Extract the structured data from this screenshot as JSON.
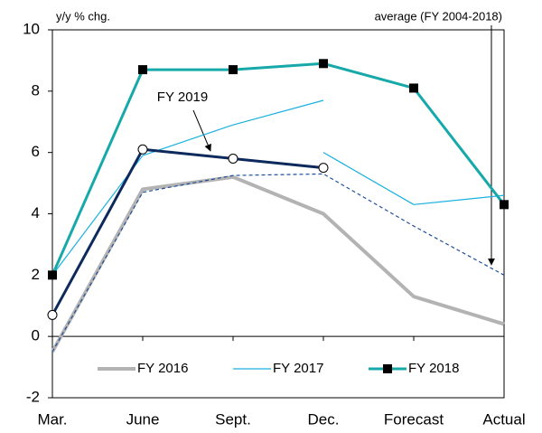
{
  "chart_data": {
    "type": "line",
    "ylabel": "y/y % chg.",
    "categories": [
      "Mar.",
      "June",
      "Sept.",
      "Dec.",
      "Forecast",
      "Actual"
    ],
    "ylim": [
      -2,
      10
    ],
    "yticks": [
      -2,
      0,
      2,
      4,
      6,
      8,
      10
    ],
    "series": [
      {
        "name": "FY 2016",
        "color": "#b3b3b3",
        "line_width": 4,
        "legend": true,
        "values": [
          -0.5,
          4.8,
          5.2,
          4.0,
          1.3,
          0.4
        ]
      },
      {
        "name": "FY 2017",
        "color": "#1ab0e0",
        "line_width": 1.2,
        "legend": true,
        "values": [
          2.0,
          5.9,
          6.9,
          7.7,
          null,
          null
        ]
      },
      {
        "color": "#1ab0e0",
        "line_width": 1.2,
        "legend": false,
        "values": [
          null,
          null,
          null,
          6.0,
          4.3,
          4.6
        ]
      },
      {
        "name": "average (FY 2004-2018)",
        "color": "#1f4e99",
        "line_width": 1.2,
        "dash": true,
        "legend": false,
        "values": [
          -0.5,
          4.7,
          5.25,
          5.3,
          3.6,
          2.0
        ]
      },
      {
        "name": "FY 2018",
        "color": "#17a9a9",
        "line_width": 3,
        "marker": "square",
        "legend": true,
        "values": [
          2.0,
          8.7,
          8.7,
          8.9,
          8.1,
          4.3
        ]
      },
      {
        "name": "FY 2019",
        "color": "#0d2a5c",
        "line_width": 3,
        "marker": "circle",
        "legend": false,
        "values": [
          0.7,
          6.1,
          5.8,
          5.5,
          null,
          null
        ]
      }
    ]
  }
}
